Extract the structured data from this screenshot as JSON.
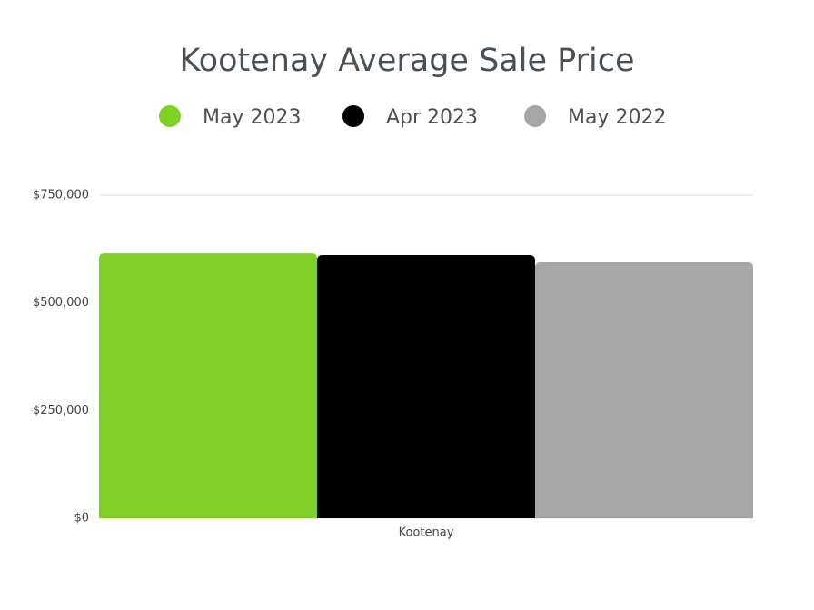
{
  "chart_data": {
    "type": "bar",
    "title": "Kootenay Average Sale Price",
    "categories": [
      "Kootenay"
    ],
    "series": [
      {
        "name": "May 2023",
        "color": "#7ed026",
        "values": [
          615000
        ]
      },
      {
        "name": "Apr 2023",
        "color": "#000000",
        "values": [
          611000
        ]
      },
      {
        "name": "May 2022",
        "color": "#a6a6a6",
        "values": [
          594000
        ]
      }
    ],
    "ylim": [
      0,
      750000
    ],
    "yticks": [
      {
        "value": 0,
        "label": "$0"
      },
      {
        "value": 250000,
        "label": "$250,000"
      },
      {
        "value": 500000,
        "label": "$500,000"
      },
      {
        "value": 750000,
        "label": "$750,000"
      }
    ],
    "grid": true
  }
}
